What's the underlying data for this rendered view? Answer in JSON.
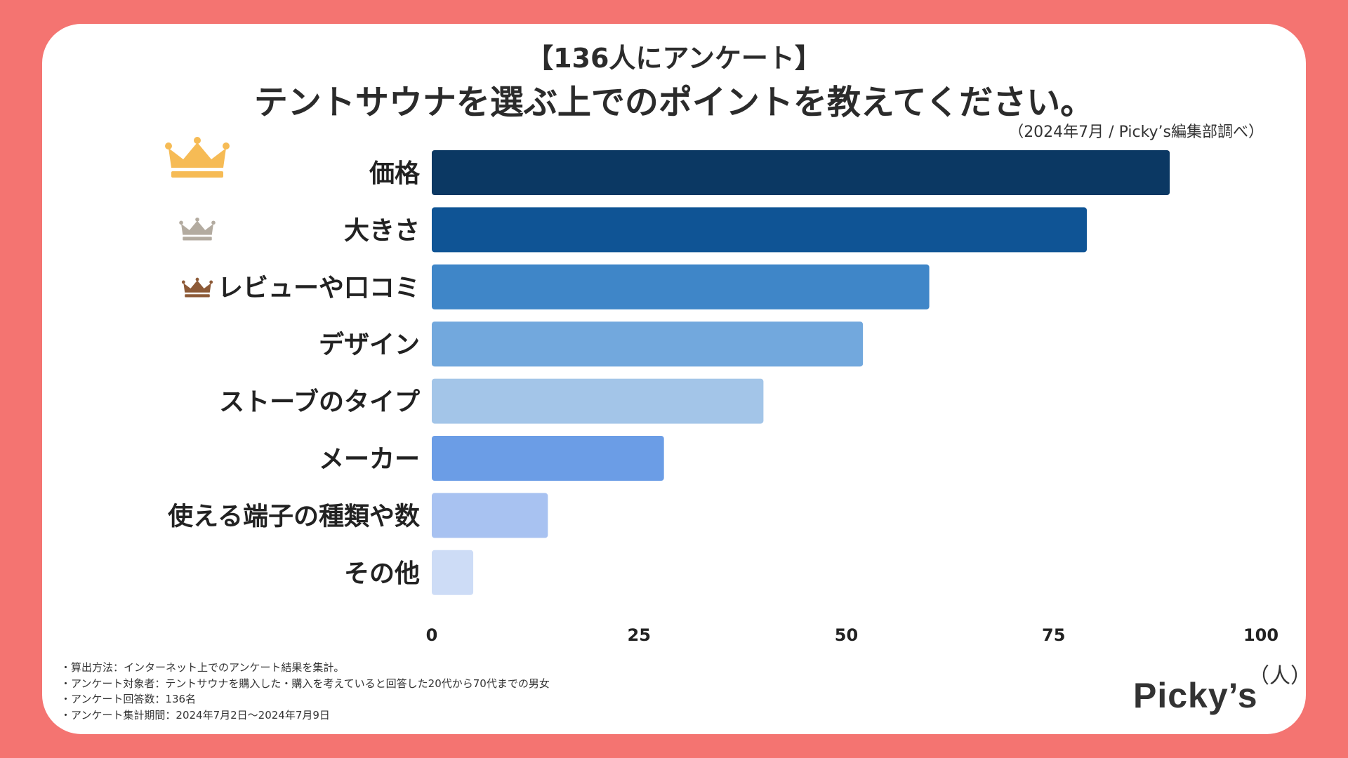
{
  "header": {
    "survey_tag": "【136人にアンケート】",
    "title": "テントサウナを選ぶ上でのポイントを教えてください。",
    "source": "（2024年7月 / Picky’s編集部調べ）"
  },
  "chart_data": {
    "type": "bar",
    "orientation": "horizontal",
    "title": "テントサウナを選ぶ上でのポイントを教えてください。",
    "categories": [
      "価格",
      "大きさ",
      "レビューや口コミ",
      "デザイン",
      "ストーブのタイプ",
      "メーカー",
      "使える端子の種類や数",
      "その他"
    ],
    "values": [
      89,
      79,
      60,
      52,
      40,
      28,
      14,
      5
    ],
    "colors": [
      "#0b3863",
      "#0f5495",
      "#3f86c8",
      "#72a8dd",
      "#a3c5e8",
      "#6b9de6",
      "#a8c2f1",
      "#cddcf6"
    ],
    "xlim": [
      0,
      100
    ],
    "xticks": [
      0,
      25,
      50,
      75,
      100
    ],
    "xlabel": "（人）",
    "rank_icons": [
      {
        "rank": 1,
        "icon": "gold-crown-icon",
        "color": "#f6bb55"
      },
      {
        "rank": 2,
        "icon": "silver-crown-icon",
        "color": "#b3aba0"
      },
      {
        "rank": 3,
        "icon": "bronze-crown-icon",
        "color": "#8d5a37"
      }
    ]
  },
  "footer": {
    "notes": [
      "・算出方法：インターネット上でのアンケート結果を集計。",
      "・アンケート対象者：テントサウナを購入した・購入を考えていると回答した20代から70代までの男女",
      "・アンケート回答数：136名",
      "・アンケート集計期間：2024年7月2日〜2024年7月9日"
    ],
    "logo": "Picky’s"
  }
}
